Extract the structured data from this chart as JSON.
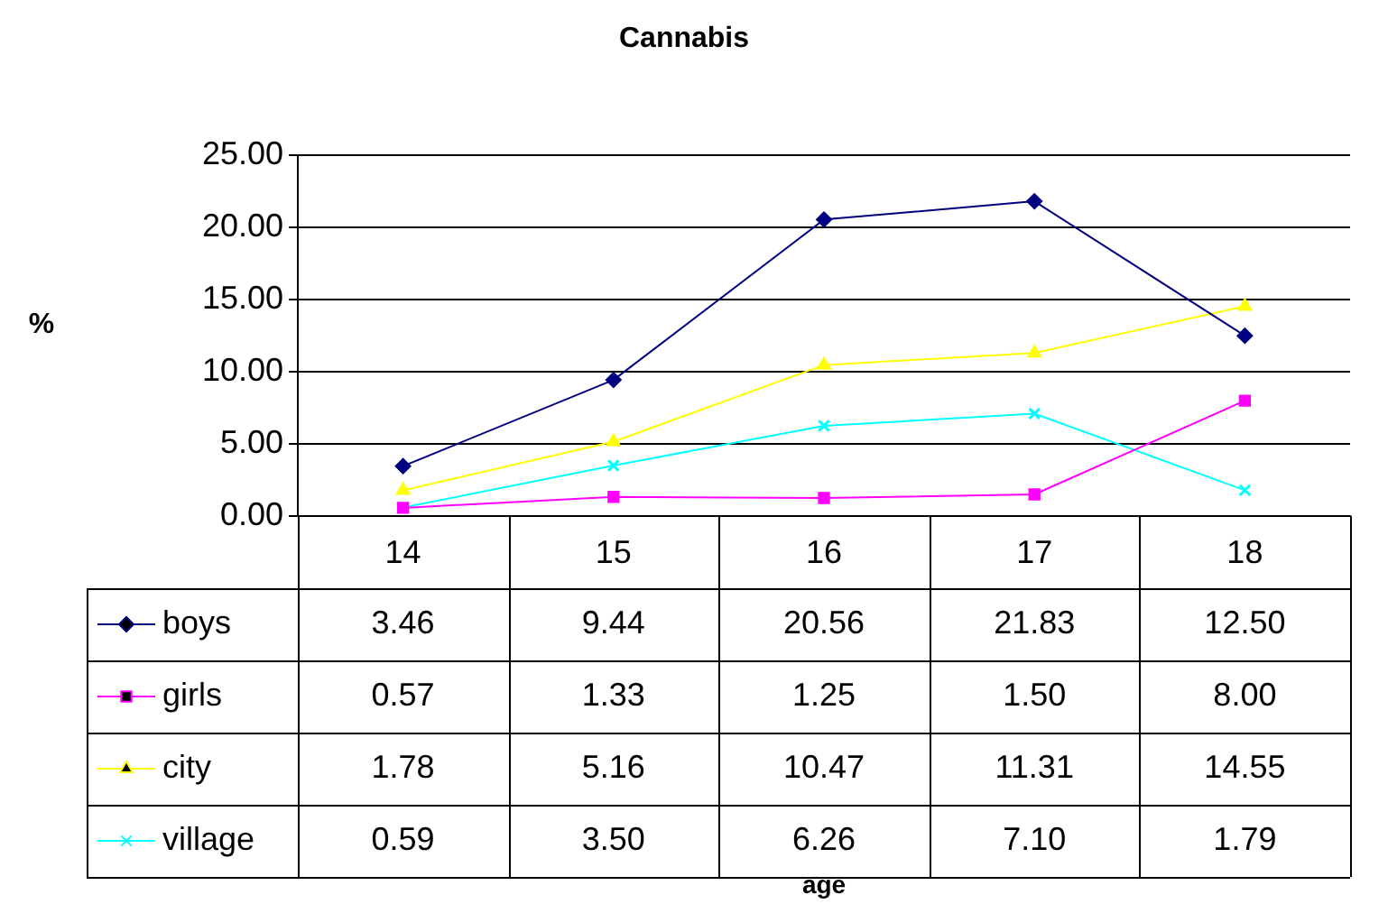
{
  "chart_data": {
    "type": "line",
    "title": "Cannabis",
    "annotations": [
      "%",
      "age"
    ],
    "categories": [
      "14",
      "15",
      "16",
      "17",
      "18"
    ],
    "series": [
      {
        "name": "boys",
        "color": "#000080",
        "marker": "diamond",
        "values": [
          3.46,
          9.44,
          20.56,
          21.83,
          12.5
        ],
        "value_labels": [
          "3.46",
          "9.44",
          "20.56",
          "21.83",
          "12.50"
        ]
      },
      {
        "name": "girls",
        "color": "#ff00ff",
        "marker": "square",
        "values": [
          0.57,
          1.33,
          1.25,
          1.5,
          8.0
        ],
        "value_labels": [
          "0.57",
          "1.33",
          "1.25",
          "1.50",
          "8.00"
        ]
      },
      {
        "name": "city",
        "color": "#ffff00",
        "marker": "triangle",
        "values": [
          1.78,
          5.16,
          10.47,
          11.31,
          14.55
        ],
        "value_labels": [
          "1.78",
          "5.16",
          "10.47",
          "11.31",
          "14.55"
        ]
      },
      {
        "name": "village",
        "color": "#00ffff",
        "marker": "cross",
        "values": [
          0.59,
          3.5,
          6.26,
          7.1,
          1.79
        ],
        "value_labels": [
          "0.59",
          "3.50",
          "6.26",
          "7.10",
          "1.79"
        ]
      }
    ],
    "ylim": [
      0,
      25
    ],
    "yticks": [
      {
        "value": 0,
        "label": "0.00"
      },
      {
        "value": 5,
        "label": "5.00"
      },
      {
        "value": 10,
        "label": "10.00"
      },
      {
        "value": 15,
        "label": "15.00"
      },
      {
        "value": 20,
        "label": "20.00"
      },
      {
        "value": 25,
        "label": "25.00"
      }
    ],
    "grid": "y",
    "legend": "bottom"
  }
}
